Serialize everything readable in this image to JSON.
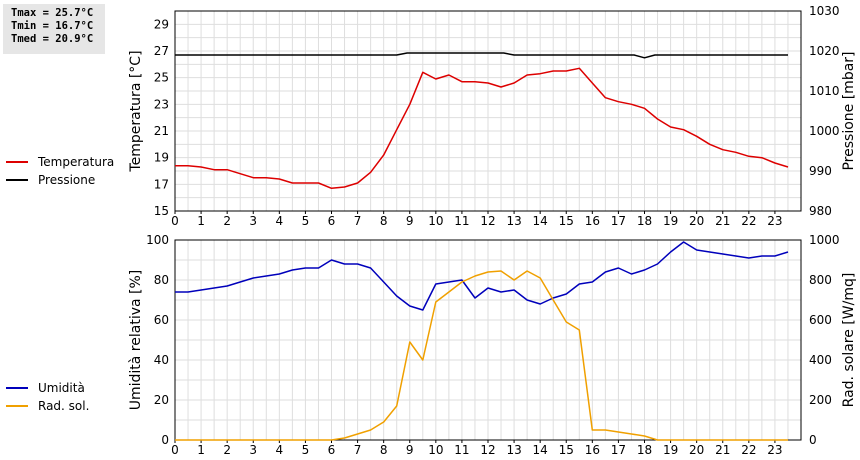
{
  "stats": {
    "tmax": "Tmax = 25.7°C",
    "tmin": "Tmin = 16.7°C",
    "tmed": "Tmed = 20.9°C"
  },
  "legend_top": [
    {
      "label": "Temperatura",
      "color": "#dd0000"
    },
    {
      "label": "Pressione",
      "color": "#000000"
    }
  ],
  "legend_bottom": [
    {
      "label": "Umidità",
      "color": "#0000bb"
    },
    {
      "label": "Rad. sol.",
      "color": "#f0a000"
    }
  ],
  "chart_data": [
    {
      "type": "line",
      "x_ticks": [
        "0",
        "1",
        "2",
        "3",
        "4",
        "5",
        "6",
        "7",
        "8",
        "9",
        "10",
        "11",
        "12",
        "13",
        "14",
        "15",
        "16",
        "17",
        "18",
        "19",
        "20",
        "21",
        "22",
        "23"
      ],
      "xlim": [
        0,
        24
      ],
      "ylabel": "Temperatura [°C]",
      "ylim": [
        15,
        30
      ],
      "y_ticks": [
        "15",
        "17",
        "19",
        "21",
        "23",
        "25",
        "27",
        "29"
      ],
      "y2label": "Pressione [mbar]",
      "y2lim": [
        980,
        1030
      ],
      "y2_ticks": [
        "980",
        "990",
        "1000",
        "1010",
        "1020",
        "1030"
      ],
      "grid": true,
      "series": [
        {
          "name": "Temperatura",
          "axis": "left",
          "color": "#dd0000",
          "x": [
            0,
            0.5,
            1,
            1.5,
            2,
            2.5,
            3,
            3.5,
            4,
            4.5,
            5,
            5.5,
            6,
            6.5,
            7,
            7.5,
            8,
            8.5,
            9,
            9.5,
            10,
            10.5,
            11,
            11.5,
            12,
            12.5,
            13,
            13.5,
            14,
            14.5,
            15,
            15.5,
            16,
            16.5,
            17,
            17.5,
            18,
            18.5,
            19,
            19.5,
            20,
            20.5,
            21,
            21.5,
            22,
            22.5,
            23,
            23.5
          ],
          "y": [
            18.4,
            18.4,
            18.3,
            18.1,
            18.1,
            17.8,
            17.5,
            17.5,
            17.4,
            17.1,
            17.1,
            17.1,
            16.7,
            16.8,
            17.1,
            17.9,
            19.2,
            21.1,
            23.0,
            25.4,
            24.9,
            25.2,
            24.7,
            24.7,
            24.6,
            24.3,
            24.6,
            25.2,
            25.3,
            25.5,
            25.5,
            25.7,
            24.6,
            23.5,
            23.2,
            23.0,
            22.7,
            21.9,
            21.3,
            21.1,
            20.6,
            20.0,
            19.6,
            19.4,
            19.1,
            19.0,
            18.6,
            18.3
          ]
        },
        {
          "name": "Pressione",
          "axis": "right",
          "color": "#000000",
          "x": [
            0,
            8.5,
            8.9,
            12.6,
            13,
            17.6,
            18,
            18.4,
            23.5
          ],
          "y": [
            1019,
            1019,
            1019.5,
            1019.5,
            1019,
            1019,
            1018.3,
            1019,
            1019
          ]
        }
      ]
    },
    {
      "type": "line",
      "x_ticks": [
        "0",
        "1",
        "2",
        "3",
        "4",
        "5",
        "6",
        "7",
        "8",
        "9",
        "10",
        "11",
        "12",
        "13",
        "14",
        "15",
        "16",
        "17",
        "18",
        "19",
        "20",
        "21",
        "22",
        "23"
      ],
      "xlim": [
        0,
        24
      ],
      "ylabel": "Umidità relativa [%]",
      "ylim": [
        0,
        100
      ],
      "y_ticks": [
        "0",
        "20",
        "40",
        "60",
        "80",
        "100"
      ],
      "y2label": "Rad. solare [W/mq]",
      "y2lim": [
        0,
        1000
      ],
      "y2_ticks": [
        "0",
        "200",
        "400",
        "600",
        "800",
        "1000"
      ],
      "grid": true,
      "series": [
        {
          "name": "Umidità",
          "axis": "left",
          "color": "#0000bb",
          "x": [
            0,
            0.5,
            1,
            1.5,
            2,
            2.5,
            3,
            3.5,
            4,
            4.5,
            5,
            5.5,
            6,
            6.5,
            7,
            7.5,
            8,
            8.5,
            9,
            9.5,
            10,
            10.5,
            11,
            11.5,
            12,
            12.5,
            13,
            13.5,
            14,
            14.5,
            15,
            15.5,
            16,
            16.5,
            17,
            17.5,
            18,
            18.5,
            19,
            19.5,
            20,
            20.5,
            21,
            21.5,
            22,
            22.5,
            23,
            23.5
          ],
          "y": [
            74,
            74,
            75,
            76,
            77,
            79,
            81,
            82,
            83,
            85,
            86,
            86,
            90,
            88,
            88,
            86,
            79,
            72,
            67,
            65,
            78,
            79,
            80,
            71,
            76,
            74,
            75,
            70,
            68,
            71,
            73,
            78,
            79,
            84,
            86,
            83,
            85,
            88,
            94,
            99,
            95,
            94,
            93,
            92,
            91,
            92,
            92,
            94
          ]
        },
        {
          "name": "Rad. sol.",
          "axis": "right",
          "color": "#f0a000",
          "x": [
            0,
            6,
            6.5,
            7,
            7.5,
            8,
            8.5,
            9,
            9.5,
            10,
            10.5,
            11,
            11.5,
            12,
            12.5,
            13,
            13.5,
            14,
            14.5,
            15,
            15.5,
            16,
            16.5,
            17,
            17.5,
            18,
            18.5,
            23.5
          ],
          "y": [
            0,
            0,
            10,
            30,
            50,
            90,
            170,
            490,
            400,
            690,
            740,
            790,
            820,
            840,
            845,
            800,
            845,
            810,
            700,
            590,
            550,
            50,
            50,
            40,
            30,
            20,
            0,
            0
          ]
        }
      ]
    }
  ]
}
